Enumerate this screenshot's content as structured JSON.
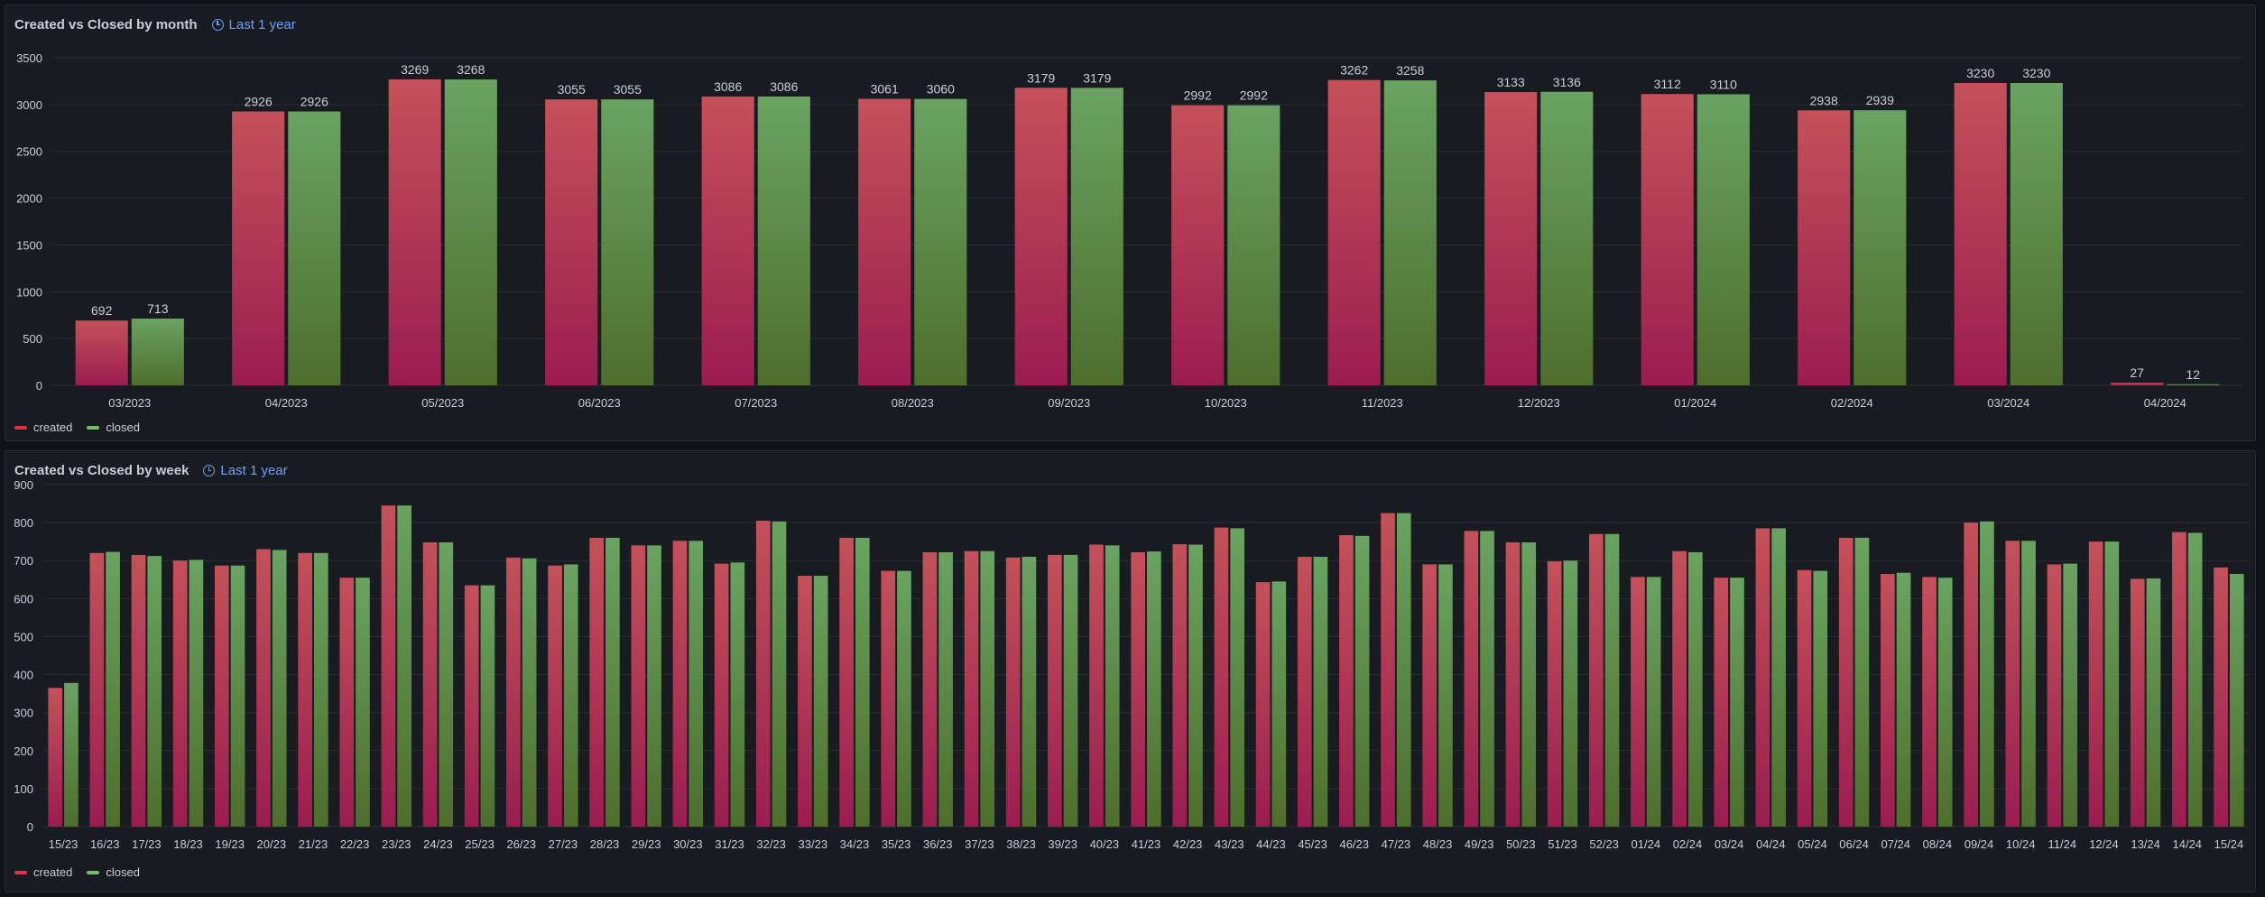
{
  "colors": {
    "created_top": "#c4515a",
    "created_bottom": "#9b1d50",
    "created_legend": "#e0304a",
    "closed_top": "#6aa362",
    "closed_bottom": "#4e6e2c",
    "closed_legend": "#73bf69",
    "grid": "#2a2d33",
    "text": "#ccccdc",
    "link": "#6e9fff"
  },
  "panels": {
    "month": {
      "title": "Created vs Closed by month",
      "time_range": "Last 1 year",
      "clock_icon": "clock-icon"
    },
    "week": {
      "title": "Created vs Closed by week",
      "time_range": "Last 1 year",
      "clock_icon": "clock-icon"
    }
  },
  "legend": {
    "created": "created",
    "closed": "closed"
  },
  "chart_data": [
    {
      "type": "bar",
      "title": "Created vs Closed by month",
      "categories": [
        "03/2023",
        "04/2023",
        "05/2023",
        "06/2023",
        "07/2023",
        "08/2023",
        "09/2023",
        "10/2023",
        "11/2023",
        "12/2023",
        "01/2024",
        "02/2024",
        "03/2024",
        "04/2024"
      ],
      "series": [
        {
          "name": "created",
          "values": [
            692,
            2926,
            3269,
            3055,
            3086,
            3061,
            3179,
            2992,
            3262,
            3133,
            3112,
            2938,
            3230,
            27
          ]
        },
        {
          "name": "closed",
          "values": [
            713,
            2926,
            3268,
            3055,
            3086,
            3060,
            3179,
            2992,
            3258,
            3136,
            3110,
            2939,
            3230,
            12
          ]
        }
      ],
      "yticks": [
        0,
        500,
        1000,
        1500,
        2000,
        2500,
        3000,
        3500
      ],
      "ylim": [
        0,
        3500
      ],
      "value_labels": true,
      "grid": true,
      "legend_position": "bottom-left"
    },
    {
      "type": "bar",
      "title": "Created vs Closed by week",
      "categories": [
        "15/23",
        "16/23",
        "17/23",
        "18/23",
        "19/23",
        "20/23",
        "21/23",
        "22/23",
        "23/23",
        "24/23",
        "25/23",
        "26/23",
        "27/23",
        "28/23",
        "29/23",
        "30/23",
        "31/23",
        "32/23",
        "33/23",
        "34/23",
        "35/23",
        "36/23",
        "37/23",
        "38/23",
        "39/23",
        "40/23",
        "41/23",
        "42/23",
        "43/23",
        "44/23",
        "45/23",
        "46/23",
        "47/23",
        "48/23",
        "49/23",
        "50/23",
        "51/23",
        "52/23",
        "01/24",
        "02/24",
        "03/24",
        "04/24",
        "05/24",
        "06/24",
        "07/24",
        "08/24",
        "09/24",
        "10/24",
        "11/24",
        "12/24",
        "13/24",
        "14/24",
        "15/24"
      ],
      "series": [
        {
          "name": "created",
          "values": [
            365,
            720,
            715,
            700,
            687,
            730,
            720,
            655,
            845,
            748,
            635,
            708,
            687,
            760,
            740,
            752,
            692,
            805,
            660,
            760,
            673,
            722,
            725,
            708,
            715,
            742,
            722,
            743,
            787,
            643,
            710,
            767,
            825,
            690,
            778,
            748,
            698,
            770,
            657,
            725,
            655,
            785,
            675,
            760,
            665,
            657,
            800,
            752,
            690,
            750,
            652,
            775,
            682
          ]
        },
        {
          "name": "closed",
          "values": [
            378,
            723,
            712,
            702,
            687,
            728,
            720,
            655,
            845,
            748,
            635,
            706,
            690,
            760,
            740,
            752,
            695,
            803,
            660,
            760,
            673,
            722,
            725,
            710,
            715,
            740,
            724,
            742,
            785,
            645,
            710,
            765,
            825,
            690,
            778,
            748,
            700,
            770,
            657,
            722,
            655,
            785,
            673,
            760,
            668,
            655,
            803,
            752,
            692,
            750,
            653,
            773,
            665
          ]
        }
      ],
      "yticks": [
        0,
        100,
        200,
        300,
        400,
        500,
        600,
        700,
        800,
        900
      ],
      "ylim": [
        0,
        900
      ],
      "value_labels": false,
      "grid": true,
      "legend_position": "bottom-left"
    }
  ]
}
